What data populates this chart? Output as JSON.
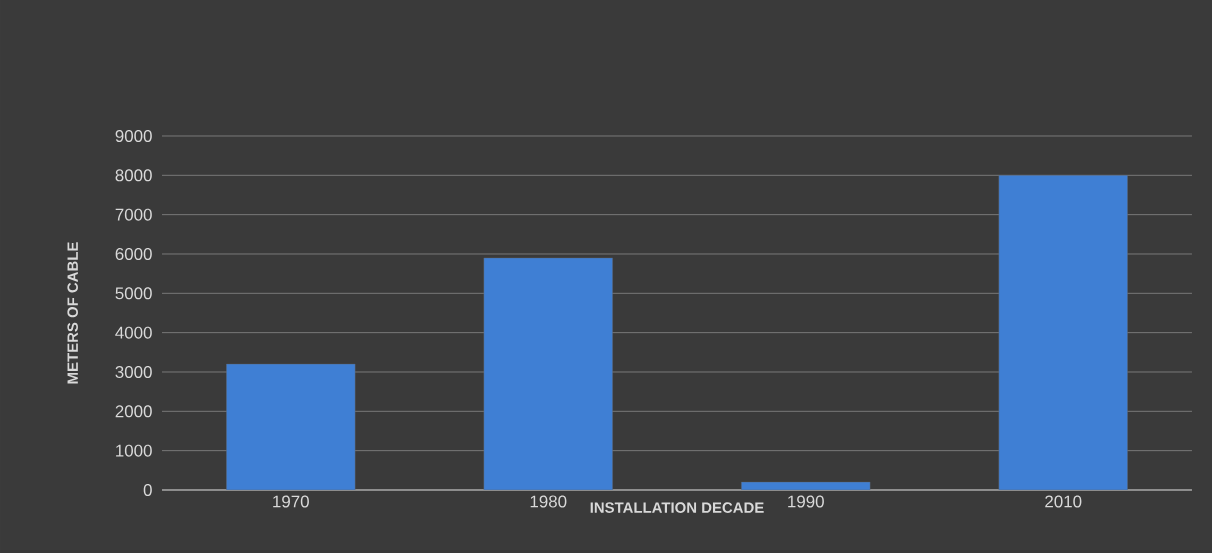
{
  "chart_data": {
    "type": "bar",
    "xlabel": "INSTALLATION DECADE",
    "ylabel": "METERS OF CABLE",
    "categories": [
      "1970",
      "1980",
      "1990",
      "2010"
    ],
    "values": [
      3200,
      5900,
      200,
      8000
    ],
    "color": "#3f7fd4",
    "ylim": [
      0,
      9000
    ],
    "yticks": [
      0,
      1000,
      2000,
      3000,
      4000,
      5000,
      6000,
      7000,
      8000,
      9000
    ],
    "grid": "y"
  }
}
